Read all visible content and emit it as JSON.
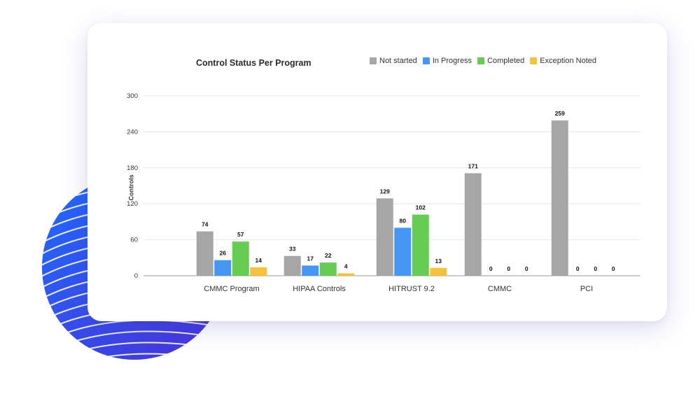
{
  "chart_data": {
    "type": "bar",
    "title": "Control Status Per Program",
    "ylabel": "Controls",
    "xlabel": "",
    "ylim": [
      0,
      300
    ],
    "yticks": [
      0,
      60,
      120,
      180,
      240,
      300
    ],
    "grid": true,
    "legend_position": "top",
    "categories": [
      "CMMC Program",
      "HIPAA Controls",
      "HITRUST 9.2",
      "CMMC",
      "PCI"
    ],
    "series": [
      {
        "name": "Not started",
        "color": "#a6a6a6",
        "values": [
          74,
          33,
          129,
          171,
          259
        ]
      },
      {
        "name": "In Progress",
        "color": "#4596f5",
        "values": [
          26,
          17,
          80,
          0,
          0
        ]
      },
      {
        "name": "Completed",
        "color": "#67cc52",
        "values": [
          57,
          22,
          102,
          0,
          0
        ]
      },
      {
        "name": "Exception Noted",
        "color": "#f7c13c",
        "values": [
          14,
          4,
          13,
          0,
          0
        ]
      }
    ]
  },
  "decoration": {
    "circle_color_start": "#1f6bff",
    "circle_color_end": "#4b2fd6"
  }
}
